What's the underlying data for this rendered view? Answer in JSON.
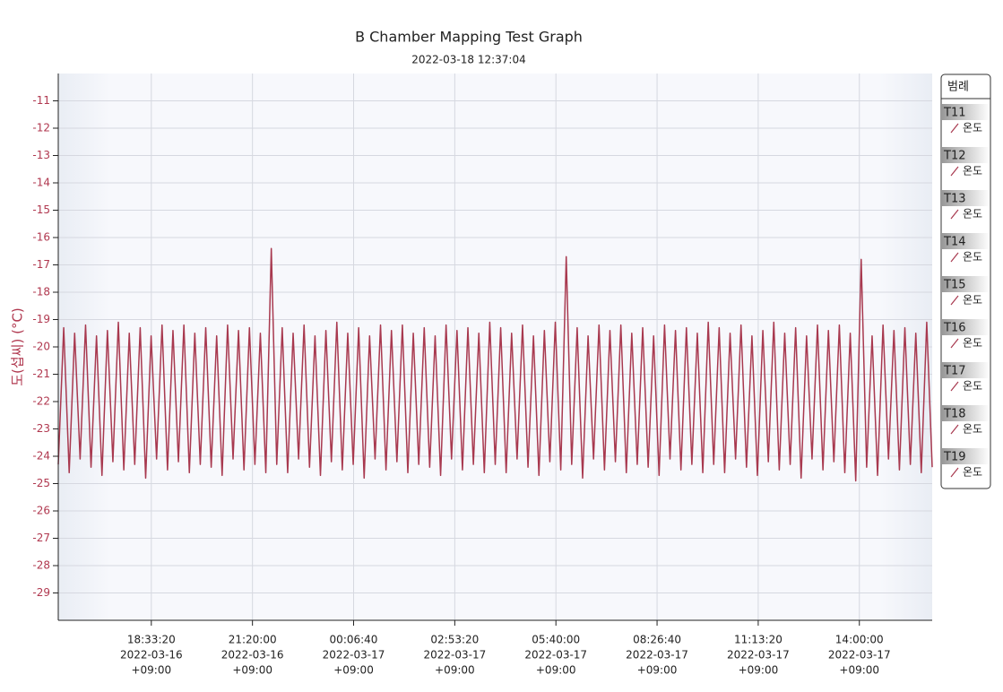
{
  "chart_data": {
    "type": "line",
    "title": "B Chamber Mapping Test Graph",
    "subtitle": "2022-03-18 12:37:04",
    "y_label": "도(섭씨) (°C)",
    "color": "#a8394f",
    "grid": true,
    "xlim": [
      "2022-03-16 16:00",
      "2022-03-17 16:00"
    ],
    "xticks": [
      {
        "value": "2022-03-16 18:33:20",
        "label": [
          "18:33:20",
          "2022-03-16",
          "+09:00"
        ]
      },
      {
        "value": "2022-03-16 21:20:00",
        "label": [
          "21:20:00",
          "2022-03-16",
          "+09:00"
        ]
      },
      {
        "value": "2022-03-17 00:06:40",
        "label": [
          "00:06:40",
          "2022-03-17",
          "+09:00"
        ]
      },
      {
        "value": "2022-03-17 02:53:20",
        "label": [
          "02:53:20",
          "2022-03-17",
          "+09:00"
        ]
      },
      {
        "value": "2022-03-17 05:40:00",
        "label": [
          "05:40:00",
          "2022-03-17",
          "+09:00"
        ]
      },
      {
        "value": "2022-03-17 08:26:40",
        "label": [
          "08:26:40",
          "2022-03-17",
          "+09:00"
        ]
      },
      {
        "value": "2022-03-17 11:13:20",
        "label": [
          "11:13:20",
          "2022-03-17",
          "+09:00"
        ]
      },
      {
        "value": "2022-03-17 14:00:00",
        "label": [
          "14:00:00",
          "2022-03-17",
          "+09:00"
        ]
      }
    ],
    "ylim": [
      -30,
      -10
    ],
    "yticks": [
      -29,
      -28,
      -27,
      -26,
      -25,
      -24,
      -23,
      -22,
      -21,
      -20,
      -19,
      -18,
      -17,
      -16,
      -15,
      -14,
      -13,
      -12,
      -11
    ],
    "legend": {
      "title": "범례",
      "items": [
        {
          "name": "T11",
          "label": "온도"
        },
        {
          "name": "T12",
          "label": "온도"
        },
        {
          "name": "T13",
          "label": "온도"
        },
        {
          "name": "T14",
          "label": "온도"
        },
        {
          "name": "T15",
          "label": "온도"
        },
        {
          "name": "T16",
          "label": "온도"
        },
        {
          "name": "T17",
          "label": "온도"
        },
        {
          "name": "T18",
          "label": "온도"
        },
        {
          "name": "T19",
          "label": "온도"
        }
      ]
    },
    "x": [
      "2022-03-16 16:00",
      "2022-03-16 16:09",
      "2022-03-16 16:18",
      "2022-03-16 16:27",
      "2022-03-16 16:36",
      "2022-03-16 16:45",
      "2022-03-16 16:54",
      "2022-03-16 17:03",
      "2022-03-16 17:12",
      "2022-03-16 17:21",
      "2022-03-16 17:30",
      "2022-03-16 17:39",
      "2022-03-16 17:48",
      "2022-03-16 17:57",
      "2022-03-16 18:06",
      "2022-03-16 18:15",
      "2022-03-16 18:24",
      "2022-03-16 18:33",
      "2022-03-16 18:42",
      "2022-03-16 18:51",
      "2022-03-16 19:00",
      "2022-03-16 19:09",
      "2022-03-16 19:18",
      "2022-03-16 19:27",
      "2022-03-16 19:36",
      "2022-03-16 19:45",
      "2022-03-16 19:54",
      "2022-03-16 20:03",
      "2022-03-16 20:12",
      "2022-03-16 20:21",
      "2022-03-16 20:30",
      "2022-03-16 20:39",
      "2022-03-16 20:48",
      "2022-03-16 20:57",
      "2022-03-16 21:06",
      "2022-03-16 21:15",
      "2022-03-16 21:24",
      "2022-03-16 21:33",
      "2022-03-16 21:42",
      "2022-03-16 21:51",
      "2022-03-16 22:00",
      "2022-03-16 22:09",
      "2022-03-16 22:18",
      "2022-03-16 22:27",
      "2022-03-16 22:36",
      "2022-03-16 22:45",
      "2022-03-16 22:54",
      "2022-03-16 23:03",
      "2022-03-16 23:12",
      "2022-03-16 23:21",
      "2022-03-16 23:30",
      "2022-03-16 23:39",
      "2022-03-16 23:48",
      "2022-03-16 23:57",
      "2022-03-17 00:06",
      "2022-03-17 00:15",
      "2022-03-17 00:24",
      "2022-03-17 00:33",
      "2022-03-17 00:42",
      "2022-03-17 00:51",
      "2022-03-17 01:00",
      "2022-03-17 01:09",
      "2022-03-17 01:18",
      "2022-03-17 01:27",
      "2022-03-17 01:36",
      "2022-03-17 01:45",
      "2022-03-17 01:54",
      "2022-03-17 02:03",
      "2022-03-17 02:12",
      "2022-03-17 02:21",
      "2022-03-17 02:30",
      "2022-03-17 02:39",
      "2022-03-17 02:48",
      "2022-03-17 02:57",
      "2022-03-17 03:06",
      "2022-03-17 03:15",
      "2022-03-17 03:24",
      "2022-03-17 03:33",
      "2022-03-17 03:42",
      "2022-03-17 03:51",
      "2022-03-17 04:00",
      "2022-03-17 04:09",
      "2022-03-17 04:18",
      "2022-03-17 04:27",
      "2022-03-17 04:36",
      "2022-03-17 04:45",
      "2022-03-17 04:54",
      "2022-03-17 05:03",
      "2022-03-17 05:12",
      "2022-03-17 05:21",
      "2022-03-17 05:30",
      "2022-03-17 05:39",
      "2022-03-17 05:48",
      "2022-03-17 05:57",
      "2022-03-17 06:06",
      "2022-03-17 06:15",
      "2022-03-17 06:24",
      "2022-03-17 06:33",
      "2022-03-17 06:42",
      "2022-03-17 06:51",
      "2022-03-17 07:00",
      "2022-03-17 07:09",
      "2022-03-17 07:18",
      "2022-03-17 07:27",
      "2022-03-17 07:36",
      "2022-03-17 07:45",
      "2022-03-17 07:54",
      "2022-03-17 08:03",
      "2022-03-17 08:12",
      "2022-03-17 08:21",
      "2022-03-17 08:30",
      "2022-03-17 08:39",
      "2022-03-17 08:48",
      "2022-03-17 08:57",
      "2022-03-17 09:06",
      "2022-03-17 09:15",
      "2022-03-17 09:24",
      "2022-03-17 09:33",
      "2022-03-17 09:42",
      "2022-03-17 09:51",
      "2022-03-17 10:00",
      "2022-03-17 10:09",
      "2022-03-17 10:18",
      "2022-03-17 10:27",
      "2022-03-17 10:36",
      "2022-03-17 10:45",
      "2022-03-17 10:54",
      "2022-03-17 11:03",
      "2022-03-17 11:12",
      "2022-03-17 11:21",
      "2022-03-17 11:30",
      "2022-03-17 11:39",
      "2022-03-17 11:48",
      "2022-03-17 11:57",
      "2022-03-17 12:06",
      "2022-03-17 12:15",
      "2022-03-17 12:24",
      "2022-03-17 12:33",
      "2022-03-17 12:42",
      "2022-03-17 12:51",
      "2022-03-17 13:00",
      "2022-03-17 13:09",
      "2022-03-17 13:18",
      "2022-03-17 13:27",
      "2022-03-17 13:36",
      "2022-03-17 13:45",
      "2022-03-17 13:54",
      "2022-03-17 14:03",
      "2022-03-17 14:12",
      "2022-03-17 14:21",
      "2022-03-17 14:30",
      "2022-03-17 14:39",
      "2022-03-17 14:48",
      "2022-03-17 14:57",
      "2022-03-17 15:06",
      "2022-03-17 15:15",
      "2022-03-17 15:24",
      "2022-03-17 15:33",
      "2022-03-17 15:42",
      "2022-03-17 15:51",
      "2022-03-17 16:00"
    ],
    "values": [
      -24.3,
      -19.3,
      -24.6,
      -19.5,
      -24.1,
      -19.2,
      -24.4,
      -19.6,
      -24.7,
      -19.4,
      -24.2,
      -19.1,
      -24.5,
      -19.5,
      -24.3,
      -19.3,
      -24.8,
      -19.6,
      -24.1,
      -19.2,
      -24.5,
      -19.4,
      -24.2,
      -19.2,
      -24.6,
      -19.5,
      -24.3,
      -19.3,
      -24.4,
      -19.6,
      -24.7,
      -19.2,
      -24.1,
      -19.4,
      -24.5,
      -19.3,
      -24.3,
      -19.5,
      -24.6,
      -16.4,
      -24.3,
      -19.3,
      -24.6,
      -19.5,
      -24.1,
      -19.2,
      -24.4,
      -19.6,
      -24.7,
      -19.4,
      -24.2,
      -19.1,
      -24.5,
      -19.5,
      -24.3,
      -19.3,
      -24.8,
      -19.6,
      -24.1,
      -19.2,
      -24.5,
      -19.4,
      -24.2,
      -19.2,
      -24.6,
      -19.5,
      -24.3,
      -19.3,
      -24.4,
      -19.6,
      -24.7,
      -19.2,
      -24.1,
      -19.4,
      -24.5,
      -19.3,
      -24.3,
      -19.5,
      -24.6,
      -19.1,
      -24.3,
      -19.3,
      -24.6,
      -19.5,
      -24.1,
      -19.2,
      -24.4,
      -19.6,
      -24.7,
      -19.4,
      -24.2,
      -19.1,
      -24.5,
      -16.7,
      -24.3,
      -19.3,
      -24.8,
      -19.6,
      -24.1,
      -19.2,
      -24.5,
      -19.4,
      -24.2,
      -19.2,
      -24.6,
      -19.5,
      -24.3,
      -19.3,
      -24.4,
      -19.6,
      -24.7,
      -19.2,
      -24.1,
      -19.4,
      -24.5,
      -19.3,
      -24.3,
      -19.5,
      -24.6,
      -19.1,
      -24.3,
      -19.3,
      -24.6,
      -19.5,
      -24.1,
      -19.2,
      -24.4,
      -19.6,
      -24.7,
      -19.4,
      -24.2,
      -19.1,
      -24.5,
      -19.5,
      -24.3,
      -19.3,
      -24.8,
      -19.6,
      -24.1,
      -19.2,
      -24.5,
      -19.4,
      -24.2,
      -19.2,
      -24.6,
      -19.5,
      -24.9,
      -16.8,
      -24.4,
      -19.6,
      -24.7,
      -19.2,
      -24.1,
      -19.4,
      -24.5,
      -19.3,
      -24.3,
      -19.5,
      -24.6,
      -19.1,
      -24.4
    ]
  }
}
